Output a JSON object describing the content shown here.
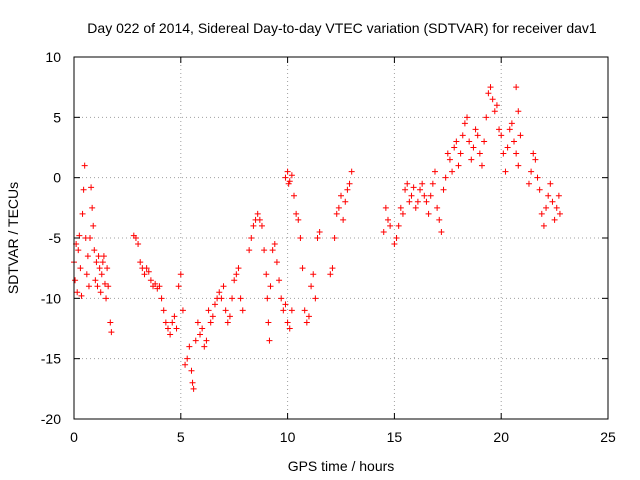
{
  "chart_data": {
    "type": "scatter",
    "title": "Day 022 of 2014, Sidereal Day-to-day VTEC variation (SDTVAR) for receiver dav1",
    "xlabel": "GPS time / hours",
    "ylabel": "SDTVAR / TECUs",
    "xlim": [
      0,
      25
    ],
    "ylim": [
      -20,
      10
    ],
    "xticks": [
      0,
      5,
      10,
      15,
      20,
      25
    ],
    "yticks": [
      -20,
      -15,
      -10,
      -5,
      0,
      5,
      10
    ],
    "grid": true,
    "marker": "+",
    "color": "#ff0000",
    "series": [
      {
        "name": "SDTVAR",
        "points": [
          [
            0.0,
            -7.0
          ],
          [
            0.05,
            -8.5
          ],
          [
            0.1,
            -5.5
          ],
          [
            0.15,
            -9.5
          ],
          [
            0.2,
            -6.0
          ],
          [
            0.25,
            -4.8
          ],
          [
            0.3,
            -7.5
          ],
          [
            0.35,
            -9.8
          ],
          [
            0.4,
            -3.0
          ],
          [
            0.45,
            -1.0
          ],
          [
            0.5,
            1.0
          ],
          [
            0.55,
            -5.0
          ],
          [
            0.6,
            -8.0
          ],
          [
            0.65,
            -6.5
          ],
          [
            0.7,
            -9.0
          ],
          [
            0.75,
            -5.0
          ],
          [
            0.8,
            -0.8
          ],
          [
            0.85,
            -2.5
          ],
          [
            0.9,
            -4.0
          ],
          [
            0.95,
            -6.0
          ],
          [
            1.0,
            -8.5
          ],
          [
            1.05,
            -7.0
          ],
          [
            1.1,
            -9.0
          ],
          [
            1.15,
            -6.5
          ],
          [
            1.2,
            -7.5
          ],
          [
            1.25,
            -9.5
          ],
          [
            1.3,
            -8.0
          ],
          [
            1.35,
            -7.0
          ],
          [
            1.4,
            -6.5
          ],
          [
            1.45,
            -8.8
          ],
          [
            1.5,
            -10.0
          ],
          [
            1.55,
            -7.5
          ],
          [
            1.6,
            -9.0
          ],
          [
            1.7,
            -12.0
          ],
          [
            1.75,
            -12.8
          ],
          [
            2.8,
            -4.8
          ],
          [
            2.9,
            -5.0
          ],
          [
            3.0,
            -5.5
          ],
          [
            3.1,
            -7.0
          ],
          [
            3.2,
            -7.5
          ],
          [
            3.3,
            -8.0
          ],
          [
            3.4,
            -7.5
          ],
          [
            3.5,
            -7.8
          ],
          [
            3.6,
            -8.5
          ],
          [
            3.7,
            -9.0
          ],
          [
            3.8,
            -8.8
          ],
          [
            3.9,
            -9.2
          ],
          [
            4.0,
            -9.0
          ],
          [
            4.1,
            -10.0
          ],
          [
            4.2,
            -11.0
          ],
          [
            4.3,
            -12.0
          ],
          [
            4.4,
            -12.5
          ],
          [
            4.5,
            -13.0
          ],
          [
            4.6,
            -12.0
          ],
          [
            4.7,
            -11.5
          ],
          [
            4.8,
            -12.5
          ],
          [
            4.9,
            -9.0
          ],
          [
            5.0,
            -8.0
          ],
          [
            5.1,
            -11.0
          ],
          [
            5.2,
            -15.5
          ],
          [
            5.3,
            -15.0
          ],
          [
            5.4,
            -14.0
          ],
          [
            5.5,
            -16.0
          ],
          [
            5.55,
            -17.0
          ],
          [
            5.6,
            -17.5
          ],
          [
            5.7,
            -13.5
          ],
          [
            5.8,
            -12.0
          ],
          [
            5.9,
            -13.0
          ],
          [
            6.0,
            -12.5
          ],
          [
            6.1,
            -14.0
          ],
          [
            6.2,
            -13.5
          ],
          [
            6.3,
            -11.0
          ],
          [
            6.4,
            -12.0
          ],
          [
            6.5,
            -11.5
          ],
          [
            6.6,
            -10.5
          ],
          [
            6.7,
            -10.0
          ],
          [
            6.8,
            -9.5
          ],
          [
            6.9,
            -10.0
          ],
          [
            7.0,
            -9.0
          ],
          [
            7.1,
            -11.0
          ],
          [
            7.2,
            -12.0
          ],
          [
            7.3,
            -11.5
          ],
          [
            7.4,
            -10.0
          ],
          [
            7.5,
            -8.5
          ],
          [
            7.6,
            -8.0
          ],
          [
            7.7,
            -7.5
          ],
          [
            7.8,
            -10.0
          ],
          [
            7.9,
            -11.0
          ],
          [
            8.2,
            -6.0
          ],
          [
            8.3,
            -5.0
          ],
          [
            8.4,
            -4.0
          ],
          [
            8.5,
            -3.5
          ],
          [
            8.6,
            -3.0
          ],
          [
            8.7,
            -3.5
          ],
          [
            8.8,
            -4.0
          ],
          [
            8.9,
            -6.0
          ],
          [
            9.0,
            -8.0
          ],
          [
            9.05,
            -10.0
          ],
          [
            9.1,
            -12.0
          ],
          [
            9.15,
            -13.5
          ],
          [
            9.2,
            -9.0
          ],
          [
            9.3,
            -6.0
          ],
          [
            9.4,
            -5.5
          ],
          [
            9.5,
            -7.0
          ],
          [
            9.6,
            -8.5
          ],
          [
            9.7,
            -10.0
          ],
          [
            9.8,
            -11.0
          ],
          [
            9.9,
            -10.5
          ],
          [
            10.0,
            -12.0
          ],
          [
            10.1,
            -12.5
          ],
          [
            10.2,
            -11.0
          ],
          [
            9.9,
            0.0
          ],
          [
            10.0,
            0.5
          ],
          [
            10.05,
            -0.5
          ],
          [
            10.1,
            -0.3
          ],
          [
            10.2,
            0.2
          ],
          [
            10.3,
            -1.5
          ],
          [
            10.4,
            -3.0
          ],
          [
            10.5,
            -3.5
          ],
          [
            10.6,
            -5.0
          ],
          [
            10.7,
            -7.5
          ],
          [
            10.8,
            -11.0
          ],
          [
            10.9,
            -12.0
          ],
          [
            11.0,
            -11.5
          ],
          [
            11.1,
            -9.0
          ],
          [
            11.2,
            -8.0
          ],
          [
            11.3,
            -10.0
          ],
          [
            11.4,
            -5.0
          ],
          [
            11.5,
            -4.5
          ],
          [
            12.0,
            -8.0
          ],
          [
            12.1,
            -7.5
          ],
          [
            12.2,
            -5.0
          ],
          [
            12.3,
            -3.0
          ],
          [
            12.4,
            -2.5
          ],
          [
            12.5,
            -1.5
          ],
          [
            12.6,
            -3.5
          ],
          [
            12.7,
            -2.0
          ],
          [
            12.8,
            -1.0
          ],
          [
            12.9,
            -0.5
          ],
          [
            13.0,
            0.5
          ],
          [
            14.5,
            -4.5
          ],
          [
            14.6,
            -2.5
          ],
          [
            14.7,
            -3.5
          ],
          [
            14.8,
            -4.0
          ],
          [
            15.0,
            -5.5
          ],
          [
            15.1,
            -5.0
          ],
          [
            15.2,
            -4.0
          ],
          [
            15.3,
            -2.5
          ],
          [
            15.4,
            -3.0
          ],
          [
            15.5,
            -1.0
          ],
          [
            15.6,
            -0.5
          ],
          [
            15.7,
            -2.0
          ],
          [
            15.8,
            -1.5
          ],
          [
            15.9,
            -0.8
          ],
          [
            16.0,
            -2.5
          ],
          [
            16.1,
            -2.0
          ],
          [
            16.2,
            -1.0
          ],
          [
            16.3,
            -0.5
          ],
          [
            16.4,
            -1.5
          ],
          [
            16.5,
            -2.0
          ],
          [
            16.6,
            -3.0
          ],
          [
            16.7,
            -1.5
          ],
          [
            16.8,
            -0.5
          ],
          [
            16.9,
            0.5
          ],
          [
            17.0,
            -2.5
          ],
          [
            17.1,
            -3.5
          ],
          [
            17.2,
            -4.5
          ],
          [
            17.3,
            -1.0
          ],
          [
            17.4,
            0.0
          ],
          [
            17.5,
            2.0
          ],
          [
            17.6,
            1.5
          ],
          [
            17.7,
            0.5
          ],
          [
            17.8,
            2.5
          ],
          [
            17.9,
            3.0
          ],
          [
            18.0,
            1.0
          ],
          [
            18.1,
            2.0
          ],
          [
            18.2,
            3.5
          ],
          [
            18.3,
            4.5
          ],
          [
            18.4,
            5.0
          ],
          [
            18.5,
            3.0
          ],
          [
            18.6,
            1.5
          ],
          [
            18.7,
            2.5
          ],
          [
            18.8,
            4.0
          ],
          [
            18.9,
            3.5
          ],
          [
            19.0,
            2.0
          ],
          [
            19.1,
            1.0
          ],
          [
            19.2,
            3.0
          ],
          [
            19.3,
            5.0
          ],
          [
            19.4,
            7.0
          ],
          [
            19.5,
            7.5
          ],
          [
            19.6,
            6.5
          ],
          [
            19.7,
            5.5
          ],
          [
            19.8,
            6.0
          ],
          [
            19.9,
            4.0
          ],
          [
            20.0,
            3.5
          ],
          [
            20.1,
            2.0
          ],
          [
            20.2,
            0.5
          ],
          [
            20.3,
            2.5
          ],
          [
            20.4,
            4.0
          ],
          [
            20.5,
            4.5
          ],
          [
            20.6,
            3.0
          ],
          [
            20.7,
            2.0
          ],
          [
            20.8,
            1.0
          ],
          [
            20.9,
            3.5
          ],
          [
            20.7,
            7.5
          ],
          [
            20.8,
            5.5
          ],
          [
            21.3,
            -0.5
          ],
          [
            21.4,
            0.5
          ],
          [
            21.5,
            2.0
          ],
          [
            21.6,
            1.5
          ],
          [
            21.7,
            0.0
          ],
          [
            21.8,
            -1.0
          ],
          [
            21.9,
            -3.0
          ],
          [
            22.0,
            -4.0
          ],
          [
            22.1,
            -2.5
          ],
          [
            22.2,
            -1.5
          ],
          [
            22.3,
            -0.5
          ],
          [
            22.4,
            -2.0
          ],
          [
            22.5,
            -3.5
          ],
          [
            22.6,
            -2.5
          ],
          [
            22.7,
            -1.5
          ],
          [
            22.75,
            -3.0
          ]
        ]
      }
    ]
  }
}
